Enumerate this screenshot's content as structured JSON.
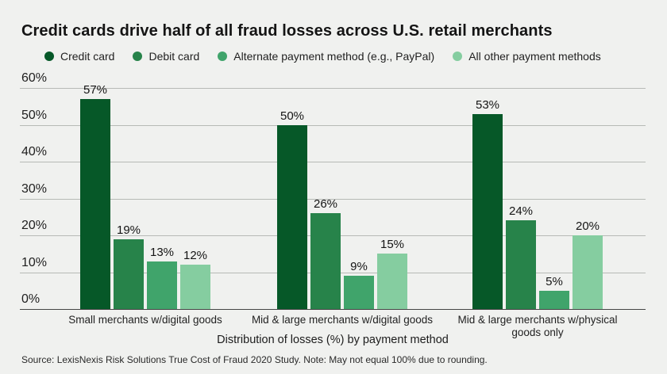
{
  "title": "Credit cards drive half of all fraud losses across U.S. retail merchants",
  "legend": [
    {
      "label": "Credit card",
      "color": "#065828",
      "icon": "dot-icon"
    },
    {
      "label": "Debit card",
      "color": "#27834a",
      "icon": "dot-icon"
    },
    {
      "label": "Alternate payment method (e.g., PayPal)",
      "color": "#40a46b",
      "icon": "dot-icon"
    },
    {
      "label": "All other payment methods",
      "color": "#85cda0",
      "icon": "dot-icon"
    }
  ],
  "chart_data": {
    "type": "bar",
    "categories": [
      "Small merchants w/digital goods",
      "Mid & large merchants w/digital goods",
      "Mid & large merchants w/physical\ngoods only"
    ],
    "series": [
      {
        "name": "Credit card",
        "color": "#065828",
        "values": [
          57,
          50,
          53
        ]
      },
      {
        "name": "Debit card",
        "color": "#27834a",
        "values": [
          19,
          26,
          24
        ]
      },
      {
        "name": "Alternate payment method (e.g., PayPal)",
        "color": "#40a46b",
        "values": [
          13,
          9,
          5
        ]
      },
      {
        "name": "All other payment methods",
        "color": "#85cda0",
        "values": [
          12,
          15,
          20
        ]
      }
    ],
    "value_label_suffix": "%",
    "y_ticks": [
      0,
      10,
      20,
      30,
      40,
      50,
      60
    ],
    "y_tick_labels": [
      "0%",
      "10%",
      "20%",
      "30%",
      "40%",
      "50%",
      "60%"
    ],
    "ylim": [
      0,
      60
    ],
    "xlabel": "Distribution of losses (%) by payment method",
    "grid": true,
    "legend_position": "top"
  },
  "source_note": "Source: LexisNexis Risk Solutions True Cost of Fraud 2020 Study. Note: May not equal 100% due to rounding.",
  "colors": {
    "background": "#f0f1ef",
    "gridline": "#b7bab6",
    "baseline": "#454545",
    "text": "#1a1a1a"
  }
}
